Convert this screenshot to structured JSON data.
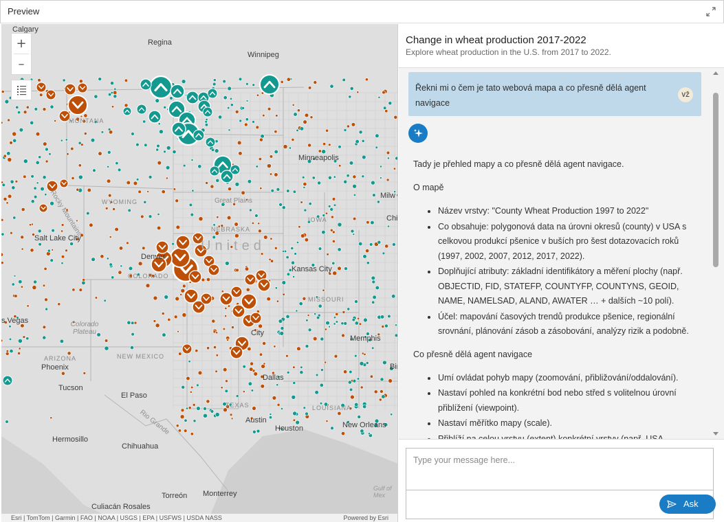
{
  "window": {
    "title": "Preview"
  },
  "map": {
    "zoom_in": "+",
    "zoom_out": "–",
    "labels": {
      "calgary": "Calgary",
      "regina": "Regina",
      "winnipeg": "Winnipeg",
      "montana": "MONTANA",
      "minneapolis": "Minneapolis",
      "wyoming": "WYOMING",
      "rocky_mountains": "Rocky Mountains",
      "great_plains": "Great Plains",
      "salt_lake_city": "Salt Lake City",
      "nebraska": "NEBRASKA",
      "iowa": "IOWA",
      "united": "United",
      "denver": "Denver",
      "colorado": "COLORADO",
      "kansas_city": "Kansas City",
      "missouri": "MISSOURI",
      "las_vegas": "s Vegas",
      "colorado_plateau": "Colorado Plateau",
      "city_ok": "City",
      "memphis": "Memphis",
      "arizona": "ARIZONA",
      "new_mexico": "NEW MEXICO",
      "phoenix": "Phoenix",
      "tucson": "Tucson",
      "el_paso": "El Paso",
      "dallas": "Dallas",
      "texas": "TEXAS",
      "louisiana": "LOUISIANA",
      "austin": "Austin",
      "houston": "Houston",
      "new_orleans": "New Orleans",
      "rio_grande": "Rio Grande",
      "hermosillo": "Hermosillo",
      "chihuahua": "Chihuahua",
      "torreon": "Torreón",
      "monterrey": "Monterrey",
      "culiacan": "Culiacán Rosales",
      "gulf": "Gulf of Mex",
      "milw": "Milw",
      "chic": "Chic",
      "bir": "Bir"
    },
    "attribution": "Esri | TomTom | Garmin | FAO | NOAA | USGS | EPA | USFWS | USDA NASS",
    "powered_by": "Powered by Esri",
    "colors": {
      "decrease": "#bd4f07",
      "increase": "#13998f",
      "land": "#dedede",
      "water": "#cccccc"
    }
  },
  "panel": {
    "title": "Change in wheat production 2017-2022",
    "subtitle": "Explore wheat production in the U.S. from 2017 to 2022.",
    "user_message": "Řekni mi o čem je tato webová mapa a co přesně dělá agent navigace",
    "user_initials": "VŽ",
    "answer": {
      "intro": "Tady je přehled mapy a co přesně dělá agent navigace.",
      "section1_title": "O mapě",
      "section1_items": [
        "Název vrstvy: \"County Wheat Production 1997 to 2022\"",
        "Co obsahuje: polygonová data na úrovni okresů (county) v USA s celkovou produkcí pšenice v buších pro šest dotazovacích roků (1997, 2002, 2007, 2012, 2017, 2022).",
        "Doplňující atributy: základní identifikátory a měření plochy (např. OBJECTID, FID, STATEFP, COUNTYFP, COUNTYNS, GEOID, NAME, NAMELSAD, ALAND, AWATER … + dalších ~10 polí).",
        "Účel: mapování časových trendů produkce pšenice, regionální srovnání, plánování zásob a zásobování, analýzy rizik a podobně."
      ],
      "section2_title": "Co přesně dělá agent navigace",
      "section2_items": [
        "Umí ovládat pohyb mapy (zoomování, přibližování/oddalování).",
        "Nastaví pohled na konkrétní bod nebo střed s volitelnou úrovní přiblížení (viewpoint).",
        "Nastaví měřítko mapy (scale).",
        "Přiblíží na celou vrstvu (extent) konkrétní vrstvy (např. USA"
      ]
    },
    "input_placeholder": "Type your message here...",
    "ask_label": "Ask"
  }
}
